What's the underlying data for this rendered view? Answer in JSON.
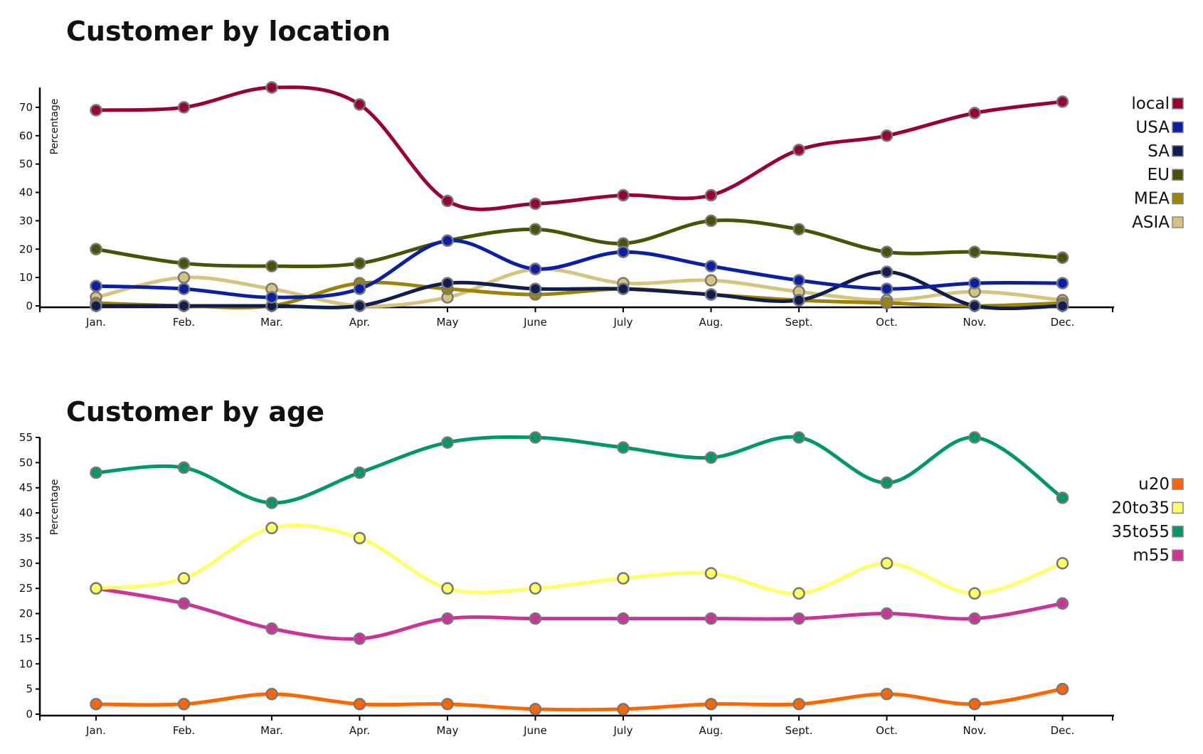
{
  "chart_data": [
    {
      "type": "line",
      "title": "Customer by location",
      "ylabel": "Percentage",
      "xlabel": "",
      "ylim": [
        0,
        77
      ],
      "yticks": [
        0,
        10,
        20,
        30,
        40,
        50,
        60,
        70
      ],
      "categories": [
        "Jan.",
        "Feb.",
        "Mar.",
        "Apr.",
        "May",
        "June",
        "July",
        "Aug.",
        "Sept.",
        "Oct.",
        "Nov.",
        "Dec."
      ],
      "legend_position": "right",
      "series": [
        {
          "name": "ASIA",
          "color": "#d4c47e",
          "values": [
            3,
            10,
            6,
            0,
            3,
            13,
            8,
            9,
            5,
            2,
            5,
            2
          ]
        },
        {
          "name": "MEA",
          "color": "#9c8300",
          "values": [
            1,
            0,
            0,
            8,
            6,
            4,
            6,
            4,
            2,
            1,
            0,
            1
          ]
        },
        {
          "name": "EU",
          "color": "#4b5205",
          "values": [
            20,
            15,
            14,
            15,
            23,
            27,
            22,
            30,
            27,
            19,
            19,
            17
          ]
        },
        {
          "name": "SA",
          "color": "#101d50",
          "values": [
            0,
            0,
            0,
            0,
            8,
            6,
            6,
            4,
            2,
            12,
            0,
            0
          ]
        },
        {
          "name": "USA",
          "color": "#0a1fa5",
          "values": [
            7,
            6,
            3,
            6,
            23,
            13,
            19,
            14,
            9,
            6,
            8,
            8
          ]
        },
        {
          "name": "local",
          "color": "#990038",
          "values": [
            69,
            70,
            77,
            71,
            37,
            36,
            39,
            39,
            55,
            60,
            68,
            72
          ]
        }
      ]
    },
    {
      "type": "line",
      "title": "Customer by age",
      "ylabel": "Percentage",
      "xlabel": "",
      "ylim": [
        0,
        55
      ],
      "yticks": [
        0,
        5,
        10,
        15,
        20,
        25,
        30,
        35,
        40,
        45,
        50,
        55
      ],
      "categories": [
        "Jan.",
        "Feb.",
        "Mar.",
        "Apr.",
        "May",
        "June",
        "July",
        "Aug.",
        "Sept.",
        "Oct.",
        "Nov.",
        "Dec."
      ],
      "legend_position": "right",
      "series": [
        {
          "name": "m55",
          "color": "#cc3399",
          "values": [
            25,
            22,
            17,
            15,
            19,
            19,
            19,
            19,
            19,
            20,
            19,
            22
          ]
        },
        {
          "name": "35to55",
          "color": "#009966",
          "values": [
            48,
            49,
            42,
            48,
            54,
            55,
            53,
            51,
            55,
            46,
            55,
            43
          ]
        },
        {
          "name": "20to35",
          "color": "#ffff66",
          "values": [
            25,
            27,
            37,
            35,
            25,
            25,
            27,
            28,
            24,
            30,
            24,
            30
          ]
        },
        {
          "name": "u20",
          "color": "#ff6600",
          "values": [
            2,
            2,
            4,
            2,
            2,
            1,
            1,
            2,
            2,
            4,
            2,
            5
          ]
        }
      ]
    }
  ]
}
